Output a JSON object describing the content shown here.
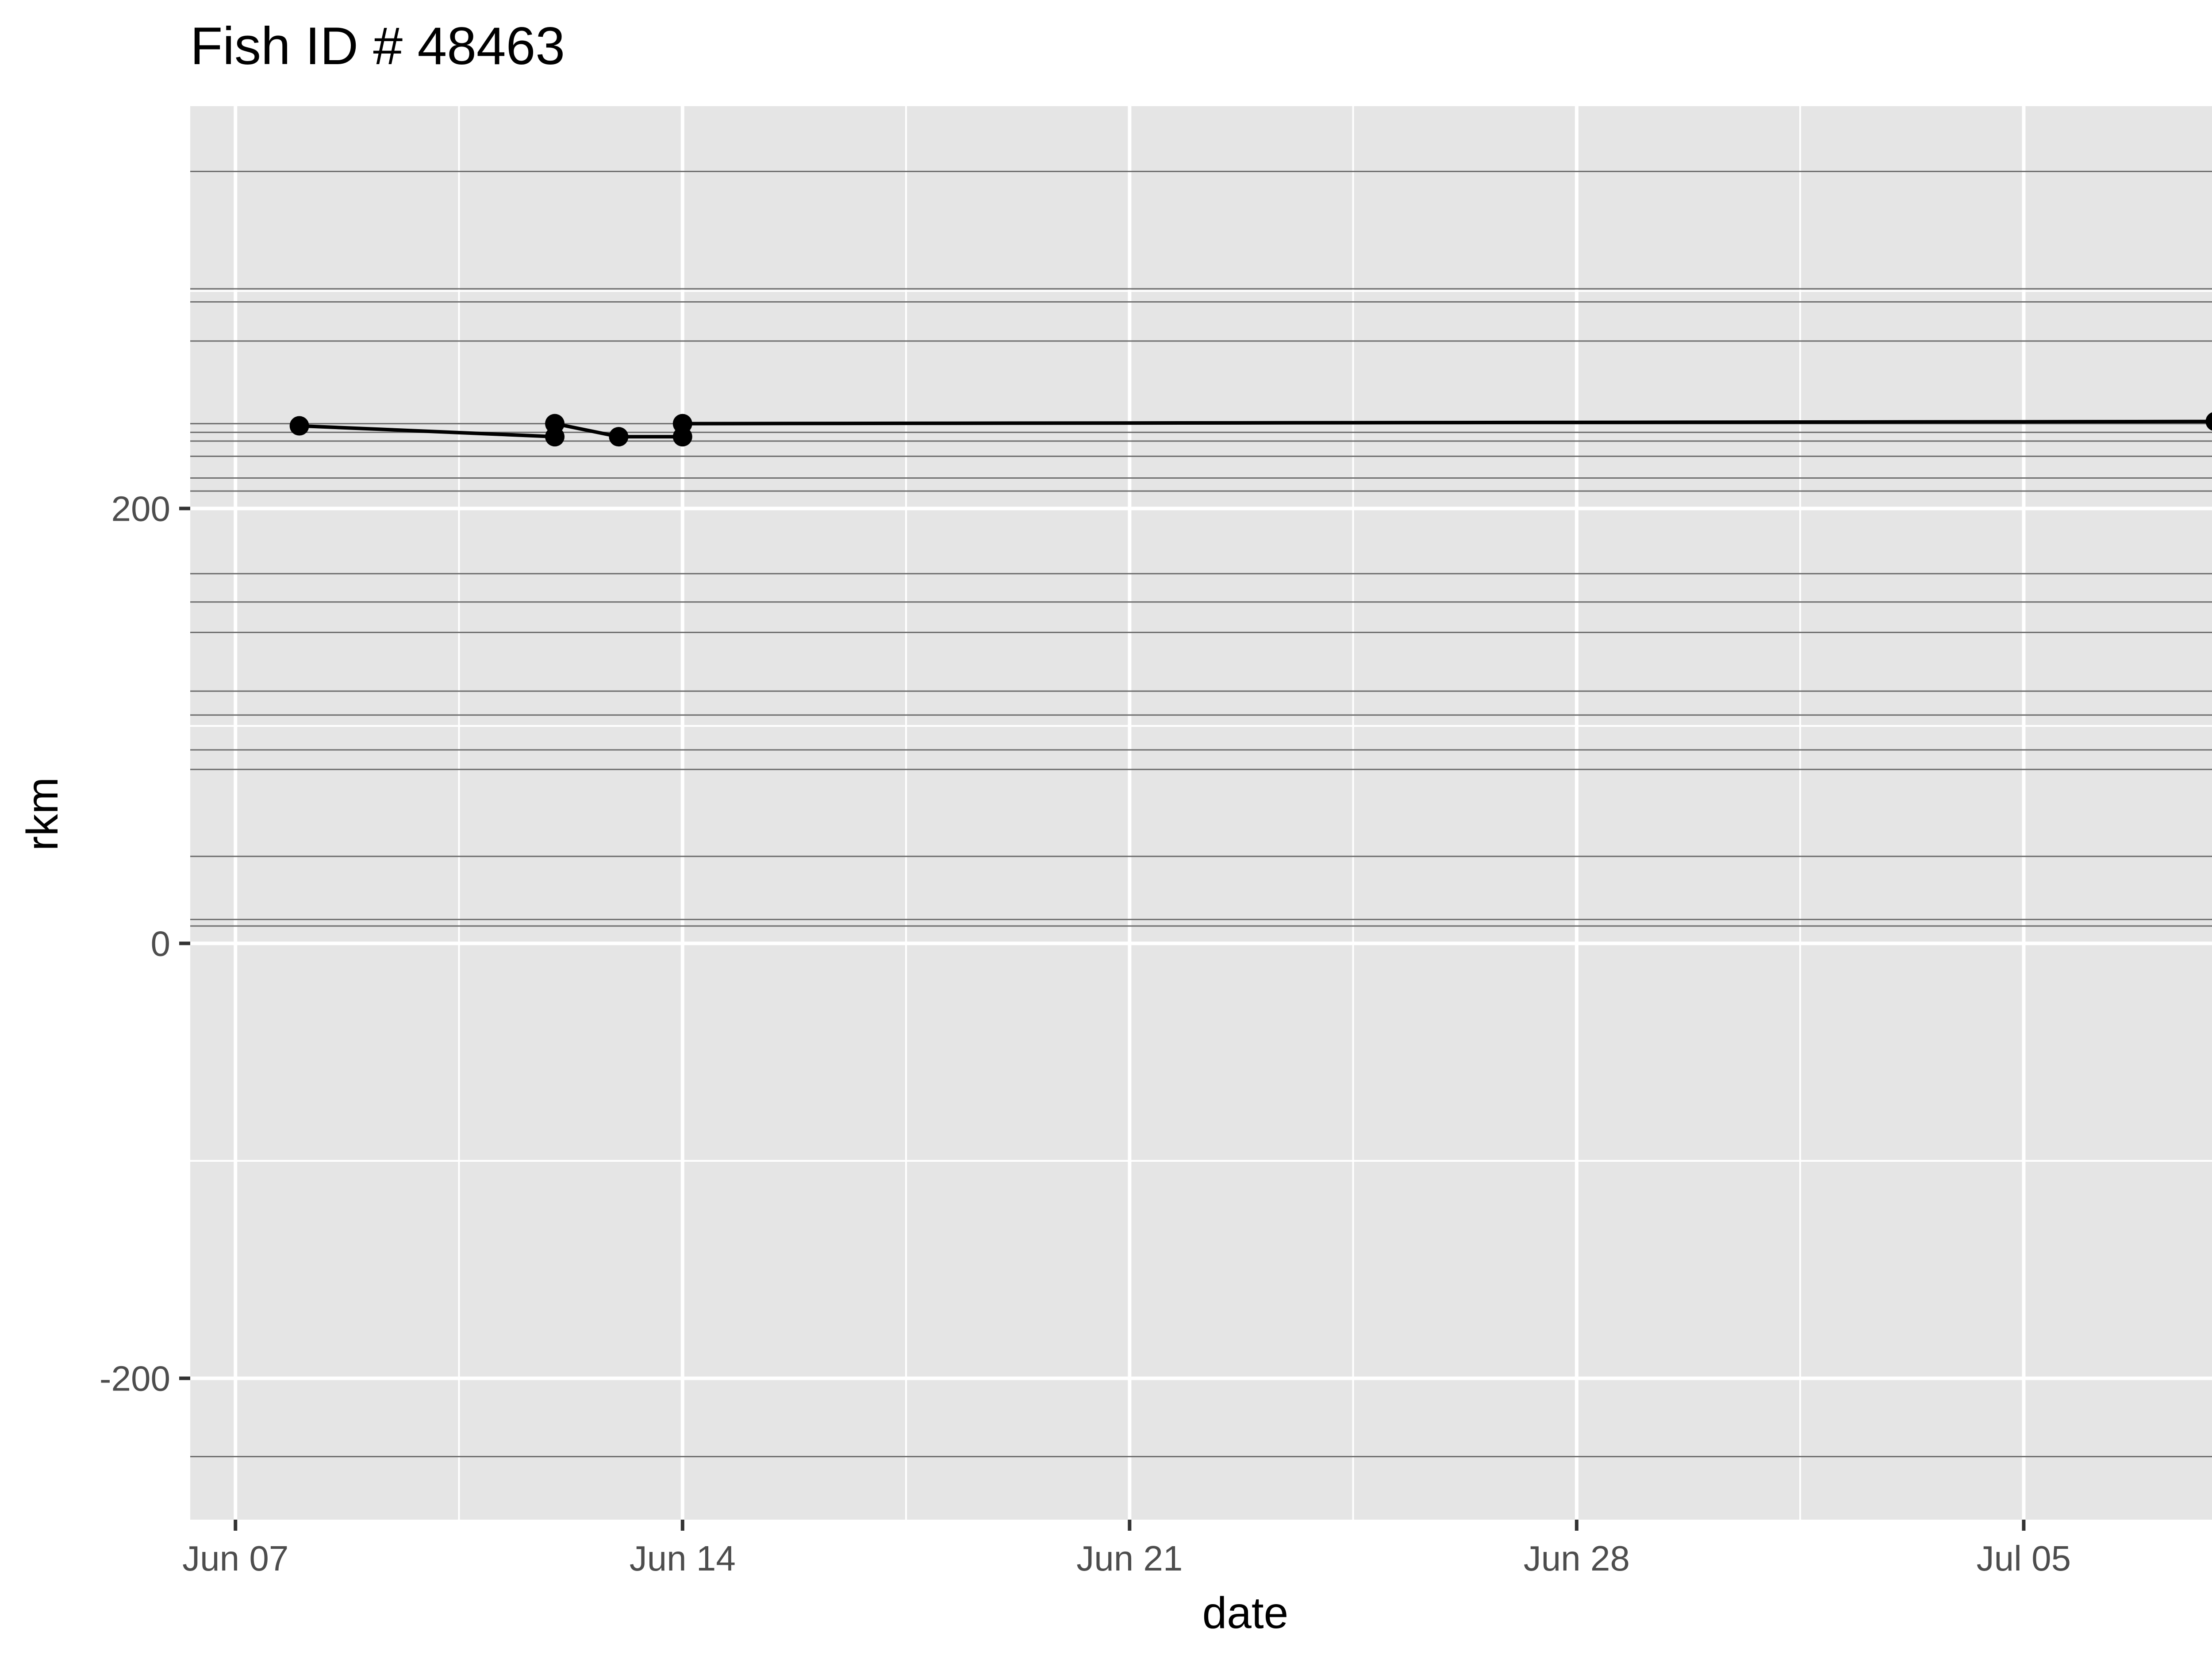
{
  "chart_data": {
    "type": "line",
    "title": "Fish ID # 48463",
    "xlabel": "date",
    "ylabel": "rkm",
    "x_axis": {
      "kind": "date",
      "range": [
        "2025-06-06T07:00",
        "2025-07-09T10:00"
      ],
      "ticks": [
        {
          "value": "2025-06-07",
          "label": "Jun 07"
        },
        {
          "value": "2025-06-14",
          "label": "Jun 14"
        },
        {
          "value": "2025-06-21",
          "label": "Jun 21"
        },
        {
          "value": "2025-06-28",
          "label": "Jun 28"
        },
        {
          "value": "2025-07-05",
          "label": "Jul 05"
        }
      ],
      "minor_ticks": [
        "2025-06-10T12:00",
        "2025-06-17T12:00",
        "2025-06-24T12:00",
        "2025-07-01T12:00",
        "2025-07-08T12:00"
      ]
    },
    "y_axis": {
      "range": [
        -265,
        385
      ],
      "ticks": [
        {
          "value": -200,
          "label": "-200"
        },
        {
          "value": 0,
          "label": "0"
        },
        {
          "value": 200,
          "label": "200"
        }
      ],
      "minor_ticks": [
        -100,
        100,
        300
      ]
    },
    "grid": true,
    "reference_lines_y": [
      355,
      301,
      295,
      277,
      239,
      235,
      231,
      224,
      214,
      208,
      170,
      157,
      143,
      116,
      105,
      89,
      80,
      40,
      11,
      8,
      -236
    ],
    "series": [
      {
        "mode": "line+markers",
        "color": "#000000",
        "points": [
          {
            "x": "2025-06-08T00:00",
            "y": 238
          },
          {
            "x": "2025-06-12T00:00",
            "y": 233
          },
          {
            "x": "2025-06-12T00:00",
            "y": 239
          },
          {
            "x": "2025-06-13T00:00",
            "y": 233
          },
          {
            "x": "2025-06-14T00:00",
            "y": 233
          },
          {
            "x": "2025-06-14T00:00",
            "y": 239
          },
          {
            "x": "2025-07-08T00:00",
            "y": 240
          }
        ]
      }
    ],
    "colors": {
      "panel_background": "#e5e5e5",
      "grid_line": "#ffffff",
      "reference_line": "#6b6b6b",
      "tick_text": "#4d4d4d",
      "tick_mark": "#333333"
    }
  }
}
